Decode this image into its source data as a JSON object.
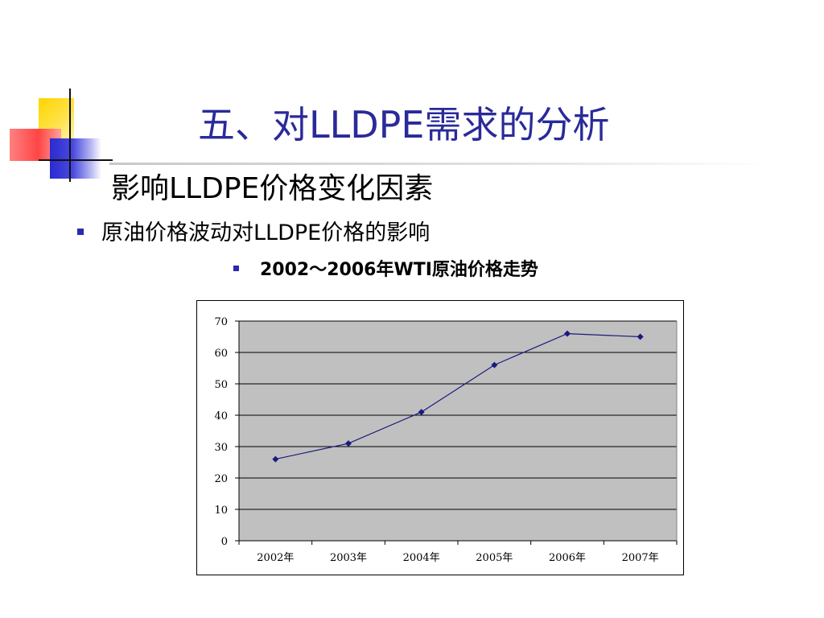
{
  "slide": {
    "title": "五、对LLDPE需求的分析",
    "heading": "影响LLDPE价格变化因素",
    "bullet1": "原油价格波动对LLDPE价格的影响",
    "bullet2": "2002～2006年WTI原油价格走势"
  },
  "colors": {
    "title": "#2a2a9a",
    "bullet": "#2a2ab0",
    "plot_bg": "#c0c0c0",
    "series_line": "#1a1a80"
  },
  "chart_data": {
    "type": "line",
    "title": "",
    "xlabel": "",
    "ylabel": "",
    "categories": [
      "2002年",
      "2003年",
      "2004年",
      "2005年",
      "2006年",
      "2007年"
    ],
    "series": [
      {
        "values": [
          26,
          31,
          41,
          56,
          66,
          65
        ]
      }
    ],
    "ylim": [
      0,
      70
    ],
    "yticks": [
      0,
      10,
      20,
      30,
      40,
      50,
      60,
      70
    ],
    "grid": true,
    "legend": "none"
  }
}
